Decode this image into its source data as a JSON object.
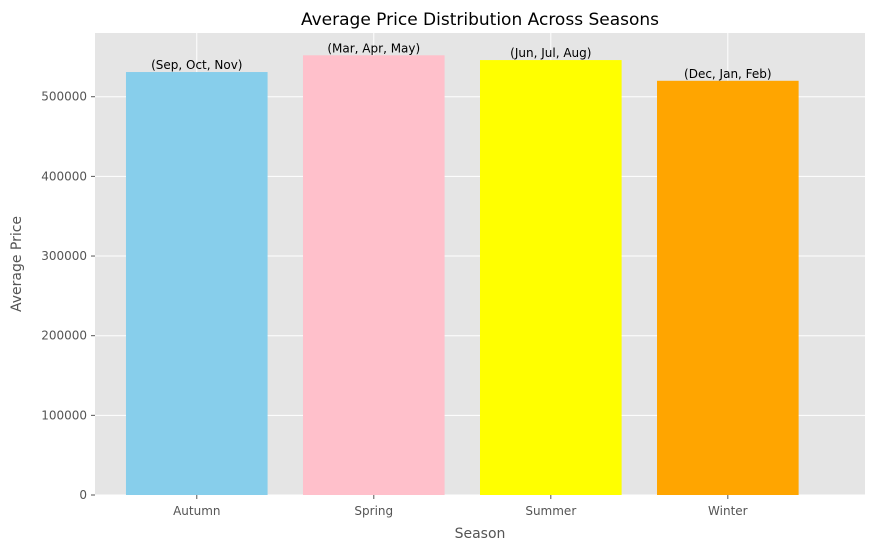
{
  "chart_data": {
    "type": "bar",
    "title": "Average Price Distribution Across Seasons",
    "xlabel": "Season",
    "ylabel": "Average Price",
    "categories": [
      "Autumn",
      "Spring",
      "Summer",
      "Winter"
    ],
    "values": [
      531000,
      552000,
      546000,
      520000
    ],
    "bar_labels": [
      "(Sep, Oct, Nov)",
      "(Mar, Apr, May)",
      "(Jun, Jul, Aug)",
      "(Dec, Jan, Feb)"
    ],
    "colors": [
      "#87ceeb",
      "#ffc0cb",
      "#ffff00",
      "#ffa500"
    ],
    "yticks": [
      0,
      100000,
      200000,
      300000,
      400000,
      500000
    ],
    "ylim": [
      0,
      580000
    ],
    "grid": true,
    "background": "#e5e5e5"
  }
}
